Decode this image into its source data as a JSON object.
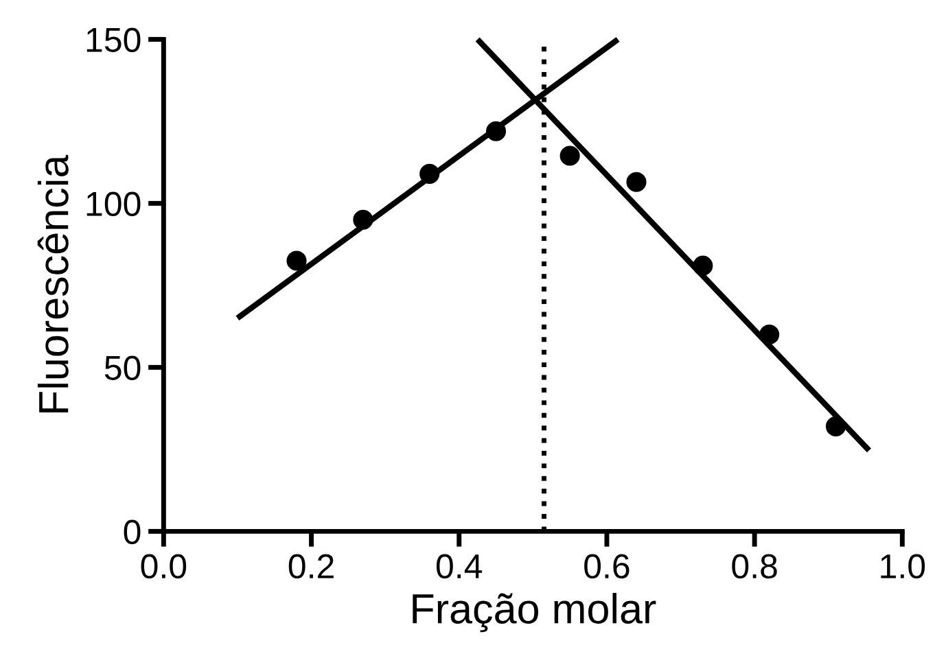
{
  "chart_data": {
    "type": "scatter",
    "xlabel": "Fração molar",
    "ylabel": "Fluorescência",
    "x": [
      0.18,
      0.27,
      0.36,
      0.45,
      0.55,
      0.64,
      0.73,
      0.82,
      0.91
    ],
    "series": [
      {
        "color": "#000000",
        "marker": "circle",
        "values": [
          82.5,
          95,
          109,
          122,
          114.5,
          106.5,
          81,
          60,
          32
        ]
      },
      {
        "type": "line",
        "color": "#000000",
        "x": [
          0.1,
          0.615
        ],
        "values": [
          65,
          150
        ]
      },
      {
        "type": "line",
        "color": "#000000",
        "x": [
          0.425,
          0.955
        ],
        "values": [
          150,
          24.7
        ]
      }
    ],
    "ref_lines": [
      {
        "axis": "x",
        "value": 0.515,
        "color": "#000000",
        "line_style": "dotted"
      }
    ],
    "xlim": [
      0.0,
      1.0
    ],
    "xticks": [
      {
        "value": 0.0,
        "label": "0.0"
      },
      0.2,
      0.4,
      0.6,
      0.8,
      {
        "value": 1.0,
        "label": "1.0"
      }
    ],
    "ylim": [
      0,
      150
    ],
    "yticks": [
      0,
      50,
      100,
      150
    ],
    "grid": false,
    "legend": false
  }
}
